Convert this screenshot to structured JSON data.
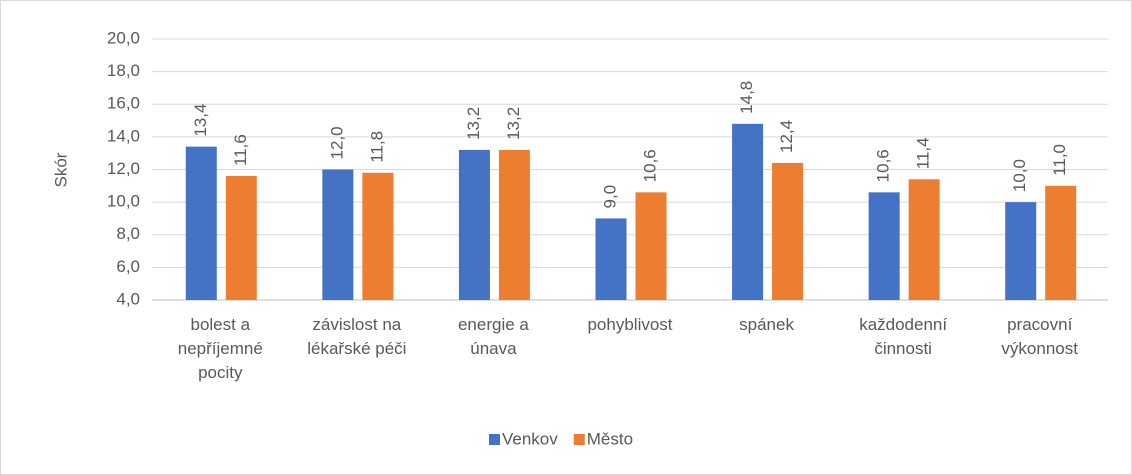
{
  "chart_data": {
    "type": "bar",
    "y_label": "Skór",
    "categories": [
      "bolest a nepříjemné pocity",
      "závislost na lékařské péči",
      "energie a únava",
      "pohyblivost",
      "spánek",
      "každodenní činnosti",
      "pracovní výkonnost"
    ],
    "series": [
      {
        "name": "Venkov",
        "color": "#4472c4",
        "values": [
          13.4,
          12.0,
          13.2,
          9.0,
          14.8,
          10.6,
          10.0
        ],
        "value_labels": [
          "13,4",
          "12,0",
          "13,2",
          "9,0",
          "14,8",
          "10,6",
          "10,0"
        ]
      },
      {
        "name": "Město",
        "color": "#ed7d31",
        "values": [
          11.6,
          11.8,
          13.2,
          10.6,
          12.4,
          11.4,
          11.0
        ],
        "value_labels": [
          "11,6",
          "11,8",
          "13,2",
          "10,6",
          "12,4",
          "11,4",
          "11,0"
        ]
      }
    ],
    "ylim": [
      4,
      20
    ],
    "yticks": [
      {
        "value": 4,
        "label": "4,0"
      },
      {
        "value": 6,
        "label": "6,0"
      },
      {
        "value": 8,
        "label": "8,0"
      },
      {
        "value": 10,
        "label": "10,0"
      },
      {
        "value": 12,
        "label": "12,0"
      },
      {
        "value": 14,
        "label": "14,0"
      },
      {
        "value": 16,
        "label": "16,0"
      },
      {
        "value": 18,
        "label": "18,0"
      },
      {
        "value": 20,
        "label": "20,0"
      }
    ],
    "grid": true,
    "legend": "bottom"
  }
}
